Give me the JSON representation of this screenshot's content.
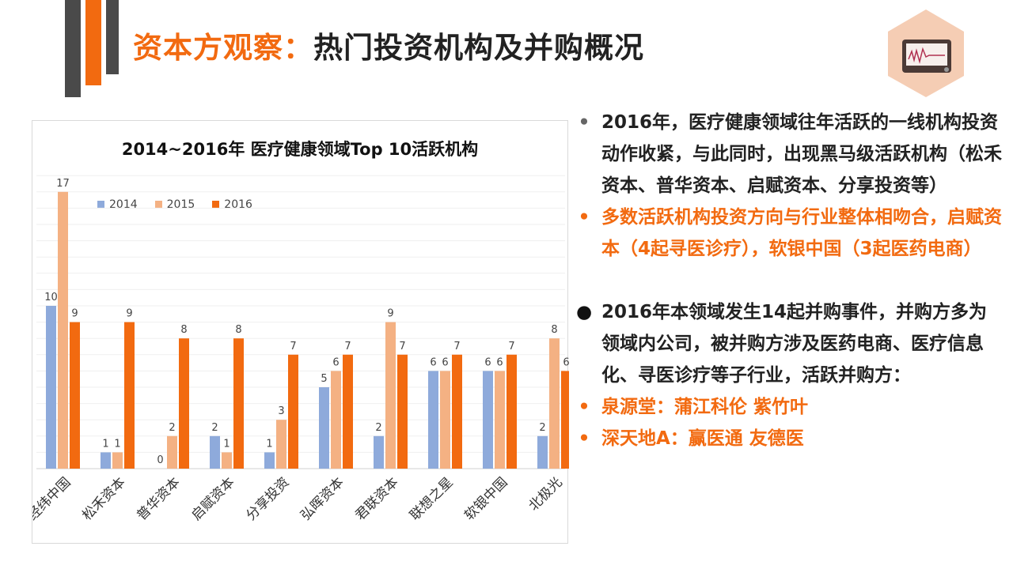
{
  "title": {
    "prefix": "资本方观察：",
    "main": "热门投资机构及并购概况"
  },
  "colors": {
    "accent": "#f26a10",
    "c2014": "#8eaadb",
    "c2015": "#f4b183",
    "c2016": "#f26a10"
  },
  "icon": "heart-monitor-icon",
  "chart_data": {
    "type": "bar",
    "title": "2014~2016年 医疗健康领域Top 10活跃机构",
    "categories": [
      "经纬中国",
      "松禾资本",
      "普华资本",
      "启赋资本",
      "分享投资",
      "弘晖资本",
      "君联资本",
      "联想之星",
      "软银中国",
      "北极光"
    ],
    "series": [
      {
        "name": "2014",
        "values": [
          10,
          1,
          0,
          2,
          1,
          5,
          2,
          6,
          6,
          2
        ]
      },
      {
        "name": "2015",
        "values": [
          17,
          1,
          2,
          1,
          3,
          6,
          9,
          6,
          6,
          8
        ]
      },
      {
        "name": "2016",
        "values": [
          9,
          9,
          8,
          8,
          7,
          7,
          7,
          7,
          7,
          6
        ]
      }
    ],
    "ylim": [
      0,
      18
    ],
    "grid": true,
    "legend": "top-left"
  },
  "bullets": [
    {
      "marker": "•",
      "text": "2016年，医疗健康领域往年活跃的一线机构投资动作收紧，与此同时，出现黑马级活跃机构（松禾资本、普华资本、启赋资本、分享投资等）",
      "orange": false
    },
    {
      "marker": "•",
      "text": "多数活跃机构投资方向与行业整体相吻合，启赋资本（4起寻医诊疗），软银中国（3起医药电商）",
      "orange": true
    },
    {
      "marker": "●",
      "text": "2016年本领域发生14起并购事件，并购方多为领域内公司，被并购方涉及医药电商、医疗信息化、寻医诊疗等子行业，活跃并购方：",
      "orange": false
    },
    {
      "marker": "•",
      "text": "泉源堂：蒲江科伦 紫竹叶",
      "orange": true
    },
    {
      "marker": "•",
      "text": "深天地A：赢医通 友德医",
      "orange": true
    }
  ]
}
